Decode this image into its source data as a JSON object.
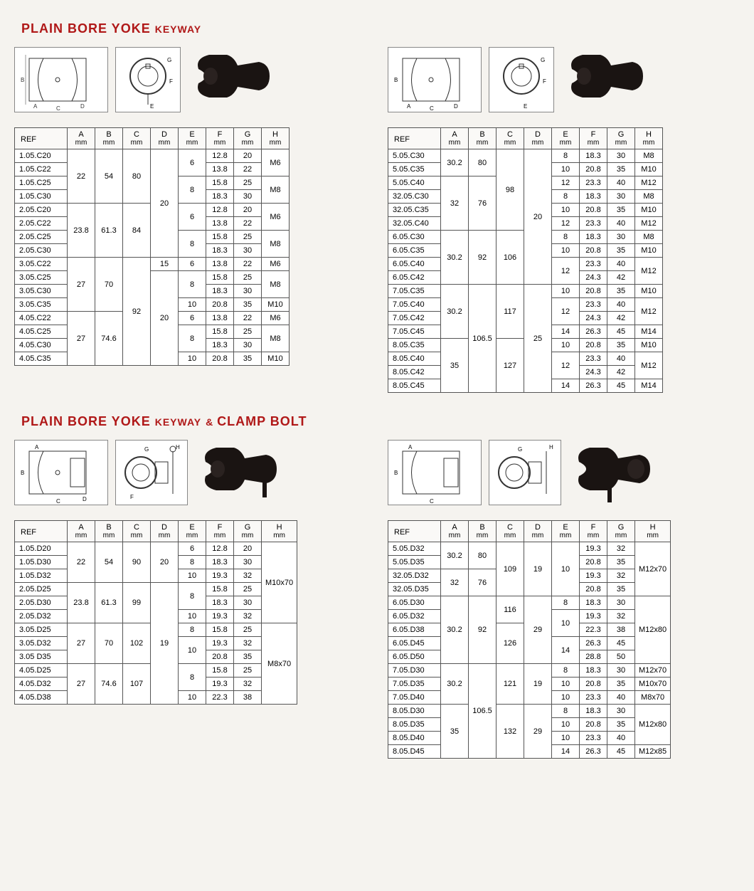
{
  "titles": {
    "t1a": "PLAIN BORE YOKE",
    "t1b": "KEYWAY",
    "t2a": "PLAIN BORE YOKE",
    "t2b": "KEYWAY",
    "t2c": "& ",
    "t2d": "CLAMP BOLT"
  },
  "headers": {
    "ref": "REF",
    "cols": [
      "A",
      "B",
      "C",
      "D",
      "E",
      "F",
      "G",
      "H"
    ],
    "unit": "mm"
  },
  "colors": {
    "title": "#b01818",
    "border": "#555",
    "bg": "#f5f3ef",
    "photo": "#1a1412"
  },
  "table1L": {
    "rows": [
      {
        "ref": "1.05.C20",
        "A": "22",
        "B": "54",
        "C": "80",
        "D": "20",
        "E": "6",
        "F": "12.8",
        "G": "20",
        "H": "M6",
        "sA": 4,
        "sB": 4,
        "sC": 4,
        "sD": 8,
        "sE": 2,
        "sH": 2
      },
      {
        "ref": "1.05.C22",
        "E": "",
        "F": "13.8",
        "G": "22",
        "H": ""
      },
      {
        "ref": "1.05.C25",
        "E": "8",
        "F": "15.8",
        "G": "25",
        "H": "M8",
        "sE": 2,
        "sH": 2
      },
      {
        "ref": "1.05.C30",
        "E": "",
        "F": "18.3",
        "G": "30",
        "H": ""
      },
      {
        "ref": "2.05.C20",
        "A": "23.8",
        "B": "61.3",
        "C": "84",
        "E": "6",
        "F": "12.8",
        "G": "20",
        "H": "M6",
        "sA": 4,
        "sB": 4,
        "sC": 4,
        "sE": 2,
        "sH": 2
      },
      {
        "ref": "2.05.C22",
        "E": "",
        "F": "13.8",
        "G": "22",
        "H": ""
      },
      {
        "ref": "2.05.C25",
        "E": "8",
        "F": "15.8",
        "G": "25",
        "H": "M8",
        "sE": 2,
        "sH": 2
      },
      {
        "ref": "2.05.C30",
        "E": "",
        "F": "18.3",
        "G": "30",
        "H": ""
      },
      {
        "ref": "3.05.C22",
        "A": "27",
        "B": "70",
        "C": "92",
        "D": "15",
        "E": "6",
        "F": "13.8",
        "G": "22",
        "H": "M6",
        "sA": 4,
        "sB": 4,
        "sC": 8
      },
      {
        "ref": "3.05.C25",
        "D": "20",
        "E": "8",
        "F": "15.8",
        "G": "25",
        "H": "M8",
        "sD": 7,
        "sE": 2,
        "sH": 2
      },
      {
        "ref": "3.05.C30",
        "E": "",
        "F": "18.3",
        "G": "30",
        "H": ""
      },
      {
        "ref": "3.05.C35",
        "E": "10",
        "F": "20.8",
        "G": "35",
        "H": "M10"
      },
      {
        "ref": "4.05.C22",
        "A": "27",
        "B": "74.6",
        "E": "6",
        "F": "13.8",
        "G": "22",
        "H": "M6",
        "sA": 4,
        "sB": 4
      },
      {
        "ref": "4.05.C25",
        "E": "8",
        "F": "15.8",
        "G": "25",
        "H": "M8",
        "sE": 2,
        "sH": 2
      },
      {
        "ref": "4.05.C30",
        "E": "",
        "F": "18.3",
        "G": "30",
        "H": ""
      },
      {
        "ref": "4.05.C35",
        "E": "10",
        "F": "20.8",
        "G": "35",
        "H": "M10"
      }
    ]
  },
  "table1R": {
    "rows": [
      {
        "ref": "5.05.C30",
        "A": "30.2",
        "B": "80",
        "C": "98",
        "D": "20",
        "E": "8",
        "F": "18.3",
        "G": "30",
        "H": "M8",
        "sA": 2,
        "sB": 2,
        "sC": 6,
        "sD": 10
      },
      {
        "ref": "5.05.C35",
        "E": "10",
        "F": "20.8",
        "G": "35",
        "H": "M10"
      },
      {
        "ref": "5.05.C40",
        "A": "32",
        "B": "76",
        "E": "12",
        "F": "23.3",
        "G": "40",
        "H": "M12",
        "sA": 4,
        "sB": 4
      },
      {
        "ref": "32.05.C30",
        "E": "8",
        "F": "18.3",
        "G": "30",
        "H": "M8"
      },
      {
        "ref": "32.05.C35",
        "E": "10",
        "F": "20.8",
        "G": "35",
        "H": "M10"
      },
      {
        "ref": "32.05.C40",
        "E": "12",
        "F": "23.3",
        "G": "40",
        "H": "M12"
      },
      {
        "ref": "6.05.C30",
        "A": "30.2",
        "B": "92",
        "C": "106",
        "E": "8",
        "F": "18.3",
        "G": "30",
        "H": "M8",
        "sA": 4,
        "sB": 4,
        "sC": 4
      },
      {
        "ref": "6.05.C35",
        "E": "10",
        "F": "20.8",
        "G": "35",
        "H": "M10"
      },
      {
        "ref": "6.05.C40",
        "E": "12",
        "F": "23.3",
        "G": "40",
        "H": "M12",
        "sE": 2,
        "sH": 2
      },
      {
        "ref": "6.05.C42",
        "E": "",
        "F": "24.3",
        "G": "42",
        "H": ""
      },
      {
        "ref": "7.05.C35",
        "A": "30.2",
        "B": "106.5",
        "C": "117",
        "D": "25",
        "E": "10",
        "F": "20.8",
        "G": "35",
        "H": "M10",
        "sA": 4,
        "sB": 8,
        "sC": 4,
        "sD": 8
      },
      {
        "ref": "7.05.C40",
        "E": "12",
        "F": "23.3",
        "G": "40",
        "H": "M12",
        "sE": 2,
        "sH": 2
      },
      {
        "ref": "7.05.C42",
        "E": "",
        "F": "24.3",
        "G": "42",
        "H": ""
      },
      {
        "ref": "7.05.C45",
        "E": "14",
        "F": "26.3",
        "G": "45",
        "H": "M14"
      },
      {
        "ref": "8.05.C35",
        "A": "35",
        "C": "127",
        "E": "10",
        "F": "20.8",
        "G": "35",
        "H": "M10",
        "sA": 4,
        "sC": 4
      },
      {
        "ref": "8.05.C40",
        "E": "12",
        "F": "23.3",
        "G": "40",
        "H": "M12",
        "sE": 2,
        "sH": 2
      },
      {
        "ref": "8.05.C42",
        "E": "",
        "F": "24.3",
        "G": "42",
        "H": ""
      },
      {
        "ref": "8.05.C45",
        "E": "14",
        "F": "26.3",
        "G": "45",
        "H": "M14"
      }
    ]
  },
  "table2L": {
    "rows": [
      {
        "ref": "1.05.D20",
        "A": "22",
        "B": "54",
        "C": "90",
        "D": "20",
        "E": "6",
        "F": "12.8",
        "G": "20",
        "H": "M10x70",
        "sA": 3,
        "sB": 3,
        "sC": 3,
        "sD": 3,
        "sH": 6
      },
      {
        "ref": "1.05.D30",
        "E": "8",
        "F": "18.3",
        "G": "30"
      },
      {
        "ref": "1.05.D32",
        "E": "10",
        "F": "19.3",
        "G": "32"
      },
      {
        "ref": "2.05.D25",
        "A": "23.8",
        "B": "61.3",
        "C": "99",
        "D": "19",
        "E": "8",
        "F": "15.8",
        "G": "25",
        "sA": 3,
        "sB": 3,
        "sC": 3,
        "sE": 2,
        "sD": 9
      },
      {
        "ref": "2.05.D30",
        "E": "",
        "F": "18.3",
        "G": "30"
      },
      {
        "ref": "2.05.D32",
        "E": "10",
        "F": "19.3",
        "G": "32"
      },
      {
        "ref": "3.05.D25",
        "A": "27",
        "B": "70",
        "C": "102",
        "E": "8",
        "F": "15.8",
        "G": "25",
        "H": "M8x70",
        "sA": 3,
        "sB": 3,
        "sC": 3,
        "sH": 6
      },
      {
        "ref": "3.05.D32",
        "E": "10",
        "F": "19.3",
        "G": "32",
        "sE": 2
      },
      {
        "ref": "3.05 D35",
        "E": "",
        "F": "20.8",
        "G": "35"
      },
      {
        "ref": "4.05.D25",
        "A": "27",
        "B": "74.6",
        "C": "107",
        "E": "8",
        "F": "15.8",
        "G": "25",
        "sA": 3,
        "sB": 3,
        "sC": 3,
        "sE": 2
      },
      {
        "ref": "4.05.D32",
        "E": "",
        "F": "19.3",
        "G": "32"
      },
      {
        "ref": "4.05.D38",
        "E": "10",
        "F": "22.3",
        "G": "38"
      }
    ]
  },
  "table2R": {
    "rows": [
      {
        "ref": "5.05.D32",
        "A": "30.2",
        "B": "80",
        "C": "109",
        "D": "19",
        "E": "10",
        "F": "19.3",
        "G": "32",
        "H": "M12x70",
        "sA": 2,
        "sB": 2,
        "sC": 4,
        "sD": 4,
        "sE": 4,
        "sH": 4
      },
      {
        "ref": "5.05.D35",
        "F": "20.8",
        "G": "35"
      },
      {
        "ref": "32.05.D32",
        "A": "32",
        "B": "76",
        "F": "19.3",
        "G": "32",
        "sA": 2,
        "sB": 2
      },
      {
        "ref": "32.05.D35",
        "F": "20.8",
        "G": "35"
      },
      {
        "ref": "6.05.D30",
        "A": "30.2",
        "B": "92",
        "C": "116",
        "D": "29",
        "E": "8",
        "F": "18.3",
        "G": "30",
        "H": "M12x80",
        "sA": 5,
        "sB": 5,
        "sC": 2,
        "sH": 5,
        "sD": 5
      },
      {
        "ref": "6.05.D32",
        "E": "10",
        "F": "19.3",
        "G": "32",
        "sE": 2
      },
      {
        "ref": "6.05.D38",
        "C": "126",
        "E": "",
        "F": "22.3",
        "G": "38",
        "sC": 3
      },
      {
        "ref": "6.05.D45",
        "E": "14",
        "F": "26.3",
        "G": "45",
        "sE": 2
      },
      {
        "ref": "6.05.D50",
        "E": "",
        "F": "28.8",
        "G": "50"
      },
      {
        "ref": "7.05.D30",
        "A": "30.2",
        "B": "106.5",
        "C": "121",
        "D": "19",
        "E": "8",
        "F": "18.3",
        "G": "30",
        "H": "M12x70",
        "sA": 3,
        "sB": 7,
        "sC": 3,
        "sD": 3
      },
      {
        "ref": "7.05.D35",
        "E": "10",
        "F": "20.8",
        "G": "35",
        "H": "M10x70"
      },
      {
        "ref": "7.05.D40",
        "E": "10",
        "F": "23.3",
        "G": "40",
        "H": "M8x70"
      },
      {
        "ref": "8.05.D30",
        "A": "35",
        "C": "132",
        "D": "29",
        "E": "8",
        "F": "18.3",
        "G": "30",
        "H": "M12x80",
        "sA": 4,
        "sC": 4,
        "sD": 4,
        "sH": 3
      },
      {
        "ref": "8.05.D35",
        "E": "10",
        "F": "20.8",
        "G": "35"
      },
      {
        "ref": "8.05.D40",
        "E": "10",
        "F": "23.3",
        "G": "40"
      },
      {
        "ref": "8.05.D45",
        "E": "14",
        "F": "26.3",
        "G": "45",
        "H": "M12x85"
      }
    ]
  }
}
